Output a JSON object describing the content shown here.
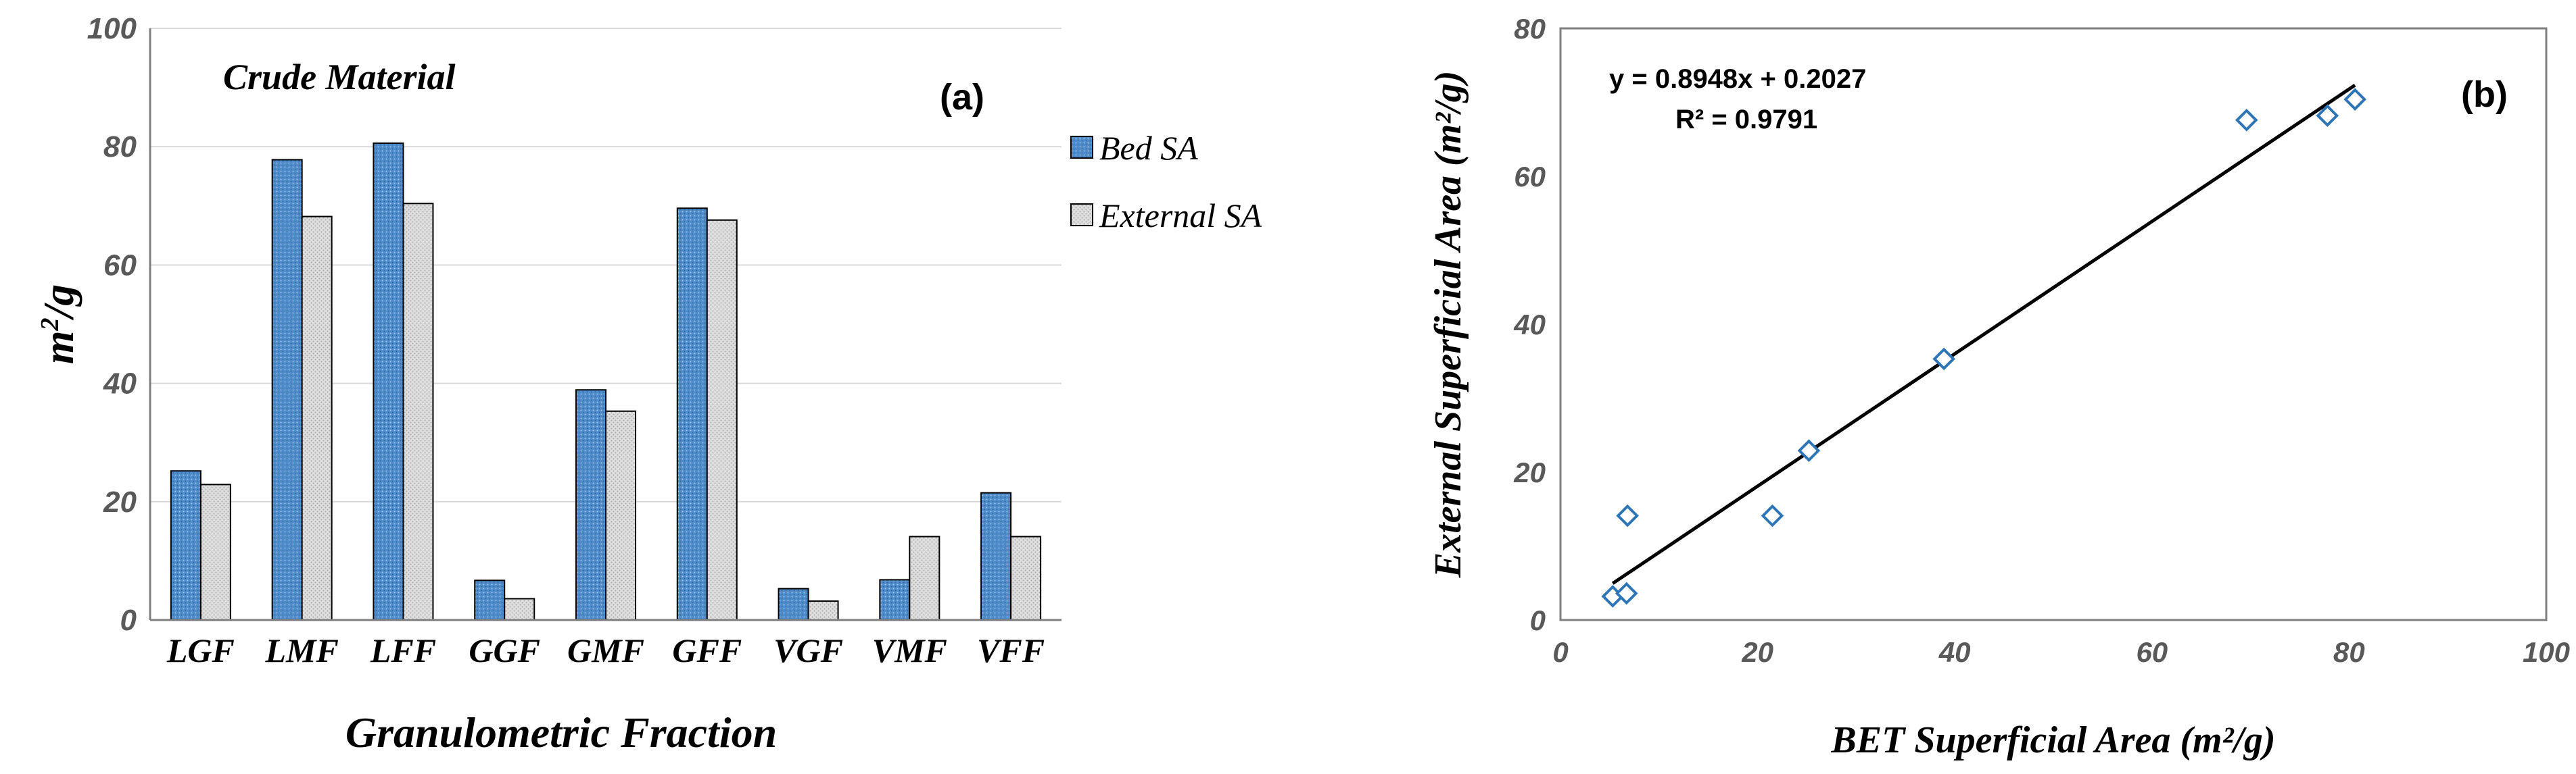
{
  "chart_data": [
    {
      "type": "bar",
      "panel_label": "(a)",
      "title": "Crude Material",
      "xlabel": "Granulometric Fraction",
      "ylabel_main": "m",
      "ylabel_sup": "2",
      "ylabel_tail": "/g",
      "ylim": [
        0,
        100
      ],
      "yticks": [
        "0",
        "20",
        "40",
        "60",
        "80",
        "100"
      ],
      "grid": true,
      "legend_position": "right",
      "categories": [
        "LGF",
        "LMF",
        "LFF",
        "GGF",
        "GMF",
        "GFF",
        "VGF",
        "VMF",
        "VFF"
      ],
      "series": [
        {
          "name": "Bed SA",
          "color": "#4f8cc9",
          "values": [
            25.2,
            77.8,
            80.6,
            6.7,
            38.9,
            69.6,
            5.3,
            6.8,
            21.5
          ]
        },
        {
          "name": "External SA",
          "color": "#d9d9d9",
          "values": [
            22.9,
            68.2,
            70.4,
            3.6,
            35.3,
            67.6,
            3.2,
            14.1,
            14.1
          ]
        }
      ]
    },
    {
      "type": "scatter",
      "panel_label": "(b)",
      "xlabel": "BET Superficial Area (m²/g)",
      "ylabel": "External Superficial Area (m²/g)",
      "xlim": [
        0,
        100
      ],
      "ylim": [
        0,
        80
      ],
      "xticks": [
        "0",
        "20",
        "40",
        "60",
        "80",
        "100"
      ],
      "yticks": [
        "0",
        "20",
        "40",
        "60",
        "80"
      ],
      "grid": false,
      "marker_color": "#2e75b6",
      "points": [
        {
          "x": 5.3,
          "y": 3.2
        },
        {
          "x": 6.7,
          "y": 3.6
        },
        {
          "x": 6.8,
          "y": 14.1
        },
        {
          "x": 21.5,
          "y": 14.1
        },
        {
          "x": 25.2,
          "y": 22.9
        },
        {
          "x": 38.9,
          "y": 35.3
        },
        {
          "x": 69.6,
          "y": 67.6
        },
        {
          "x": 77.8,
          "y": 68.2
        },
        {
          "x": 80.6,
          "y": 70.4
        }
      ],
      "trendline": {
        "slope": 0.8948,
        "intercept": 0.2027,
        "x_range": [
          5.3,
          80.6
        ],
        "equation": "y = 0.8948x + 0.2027",
        "r_squared_text": "R² = 0.9791"
      }
    }
  ]
}
